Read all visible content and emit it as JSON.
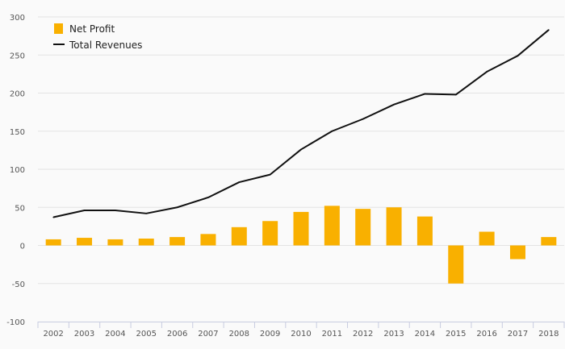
{
  "chart_data": {
    "type": "bar",
    "categories": [
      "2002",
      "2003",
      "2004",
      "2005",
      "2006",
      "2007",
      "2008",
      "2009",
      "2010",
      "2011",
      "2012",
      "2013",
      "2014",
      "2015",
      "2016",
      "2017",
      "2018"
    ],
    "series": [
      {
        "name": "Net Profit",
        "type": "bar",
        "color": "#f9b000",
        "values": [
          8,
          10,
          8,
          9,
          11,
          15,
          24,
          32,
          44,
          52,
          48,
          50,
          38,
          -50,
          18,
          -18,
          11
        ]
      },
      {
        "name": "Total Revenues",
        "type": "line",
        "color": "#111111",
        "values": [
          37,
          46,
          46,
          42,
          50,
          63,
          83,
          93,
          126,
          150,
          166,
          185,
          199,
          198,
          228,
          249,
          283
        ]
      }
    ],
    "ylim": [
      -100,
      300
    ],
    "yticks": [
      -100,
      -50,
      0,
      50,
      100,
      150,
      200,
      250,
      300
    ],
    "grid": true,
    "legend_position": "top-left",
    "title": "",
    "xlabel": "",
    "ylabel": ""
  }
}
